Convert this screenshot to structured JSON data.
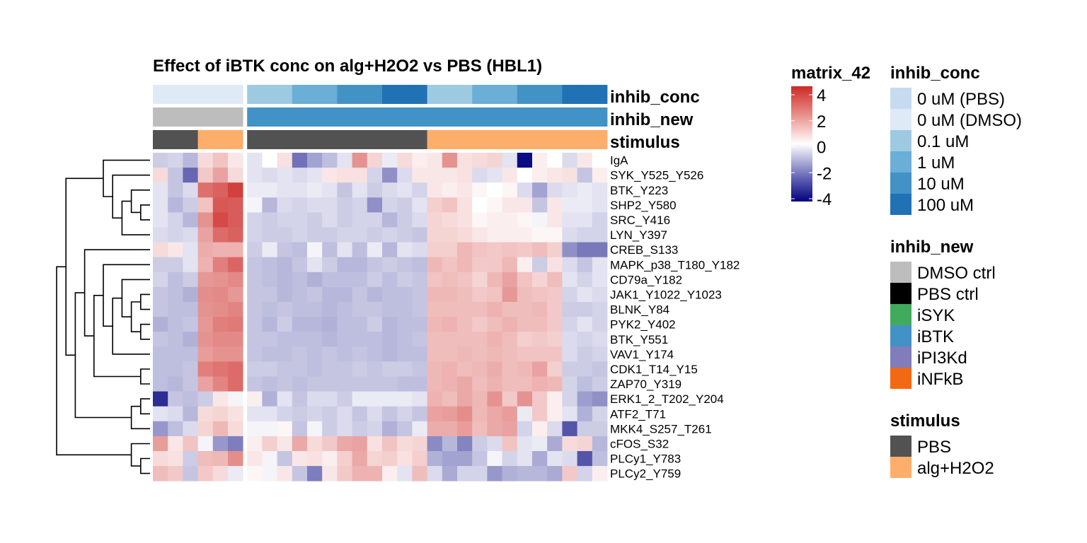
{
  "chart_data": {
    "type": "heatmap",
    "title": "Effect of iBTK conc on alg+H2O2 vs PBS (HBL1)",
    "rows": [
      "IgA",
      "SYK_Y525_Y526",
      "BTK_Y223",
      "SHP2_Y580",
      "SRC_Y416",
      "LYN_Y397",
      "CREB_S133",
      "MAPK_p38_T180_Y182",
      "CD79a_Y182",
      "JAK1_Y1022_Y1023",
      "BLNK_Y84",
      "PYK2_Y402",
      "BTK_Y551",
      "VAV1_Y174",
      "CDK1_T14_Y15",
      "ZAP70_Y319",
      "ERK1_2_T202_Y204",
      "ATF2_T71",
      "MKK4_S257_T261",
      "cFOS_S32",
      "PLCy1_Y783",
      "PLCy2_Y759"
    ],
    "column_split": [
      6,
      24
    ],
    "annotations": {
      "inhib_conc": {
        "label": "inhib_conc",
        "values": [
          "0 uM (DMSO)",
          "0 uM (DMSO)",
          "0 uM (DMSO)",
          "0 uM (DMSO)",
          "0 uM (DMSO)",
          "0 uM (DMSO)",
          "0.1 uM",
          "0.1 uM",
          "0.1 uM",
          "1 uM",
          "1 uM",
          "1 uM",
          "10 uM",
          "10 uM",
          "10 uM",
          "100 uM",
          "100 uM",
          "100 uM",
          "0.1 uM",
          "0.1 uM",
          "0.1 uM",
          "1 uM",
          "1 uM",
          "1 uM",
          "10 uM",
          "10 uM",
          "10 uM",
          "100 uM",
          "100 uM",
          "100 uM"
        ]
      },
      "inhib_new": {
        "label": "inhib_new",
        "values": [
          "DMSO ctrl",
          "DMSO ctrl",
          "DMSO ctrl",
          "DMSO ctrl",
          "DMSO ctrl",
          "DMSO ctrl",
          "iBTK",
          "iBTK",
          "iBTK",
          "iBTK",
          "iBTK",
          "iBTK",
          "iBTK",
          "iBTK",
          "iBTK",
          "iBTK",
          "iBTK",
          "iBTK",
          "iBTK",
          "iBTK",
          "iBTK",
          "iBTK",
          "iBTK",
          "iBTK",
          "iBTK",
          "iBTK",
          "iBTK",
          "iBTK",
          "iBTK",
          "iBTK"
        ]
      },
      "stimulus": {
        "label": "stimulus",
        "values": [
          "PBS",
          "PBS",
          "PBS",
          "alg+H2O2",
          "alg+H2O2",
          "alg+H2O2",
          "PBS",
          "PBS",
          "PBS",
          "PBS",
          "PBS",
          "PBS",
          "PBS",
          "PBS",
          "PBS",
          "PBS",
          "PBS",
          "PBS",
          "alg+H2O2",
          "alg+H2O2",
          "alg+H2O2",
          "alg+H2O2",
          "alg+H2O2",
          "alg+H2O2",
          "alg+H2O2",
          "alg+H2O2",
          "alg+H2O2",
          "alg+H2O2",
          "alg+H2O2",
          "alg+H2O2"
        ]
      }
    },
    "values": [
      [
        -0.6,
        -0.5,
        -0.9,
        0.5,
        0.9,
        0.3,
        -0.3,
        0,
        0.4,
        -2.0,
        -1.2,
        -0.8,
        -0.3,
        1.8,
        0.6,
        -0.2,
        0.5,
        0.2,
        0.3,
        1.8,
        0.4,
        0.5,
        0.6,
        -0.3,
        -3.8,
        0.2,
        0,
        -0.4,
        0.3,
        0
      ],
      [
        0.5,
        -0.7,
        -2.2,
        0.8,
        1.5,
        0.5,
        -0.3,
        -0.4,
        -0.3,
        -0.4,
        -0.3,
        0.3,
        0.4,
        0.4,
        -0.5,
        -1.5,
        -0.4,
        0.3,
        0.3,
        0.3,
        0.4,
        -0.4,
        -0.3,
        0.3,
        0,
        0.2,
        0.3,
        0.4,
        -0.7,
        0.2
      ],
      [
        -0.3,
        -0.7,
        -0.4,
        2.5,
        2.8,
        3.5,
        -0.2,
        -0.2,
        -0.3,
        -0.3,
        -0.2,
        -0.3,
        -0.7,
        -0.3,
        -0.6,
        -0.4,
        -0.3,
        -0.5,
        0.3,
        0.2,
        0.3,
        0.1,
        0,
        0.1,
        -0.4,
        -1.2,
        -0.4,
        -0.3,
        -0.2,
        -0.3
      ],
      [
        -0.3,
        -0.9,
        -0.6,
        0.9,
        3.0,
        2.9,
        -0.1,
        -0.9,
        -0.4,
        -0.5,
        -0.4,
        -0.4,
        -0.6,
        -0.5,
        -1.5,
        -0.5,
        -0.6,
        -0.3,
        0.7,
        0.9,
        0.4,
        0,
        0.1,
        0.3,
        0.3,
        -0.7,
        0.3,
        -0.2,
        -0.2,
        -0.3
      ],
      [
        -0.3,
        -0.5,
        -0.9,
        1.8,
        3.3,
        2.9,
        -0.5,
        -0.6,
        -0.5,
        -0.5,
        -0.6,
        -0.4,
        -0.6,
        -0.5,
        -0.5,
        -0.9,
        -0.6,
        -0.4,
        0.6,
        0.5,
        0.4,
        0.1,
        0.2,
        0.2,
        0.1,
        -0.1,
        0.3,
        -0.3,
        -0.3,
        -0.5
      ],
      [
        -0.4,
        -0.5,
        -0.4,
        1.5,
        2.6,
        2.8,
        -0.5,
        -0.6,
        -0.6,
        -0.5,
        -0.6,
        -0.6,
        -0.5,
        -0.5,
        -0.6,
        -0.5,
        -0.6,
        -0.7,
        0.6,
        0.6,
        0.5,
        0.3,
        0.2,
        0.2,
        0.2,
        0.1,
        0.1,
        -0.4,
        -0.5,
        -0.5
      ],
      [
        0.5,
        0.3,
        -0.3,
        1.3,
        1.2,
        1.2,
        -0.6,
        -0.2,
        -0.7,
        -0.8,
        -0.1,
        -0.8,
        -0.3,
        -0.8,
        -0.2,
        -0.9,
        -0.3,
        -0.4,
        0.7,
        0.7,
        1.1,
        0.9,
        0.8,
        0.9,
        0.8,
        1.0,
        0.7,
        -1.5,
        -1.9,
        -1.9
      ],
      [
        -0.6,
        -0.6,
        -0.3,
        1.2,
        2.2,
        2.7,
        -0.7,
        -0.8,
        -0.9,
        -0.7,
        -0.3,
        -0.6,
        -0.9,
        -0.9,
        -0.7,
        -0.6,
        -0.7,
        -0.8,
        1.1,
        0.9,
        1.1,
        0.8,
        0.8,
        1.1,
        0.2,
        -0.6,
        0.4,
        -0.4,
        -0.7,
        -0.3
      ],
      [
        -0.5,
        -0.8,
        -0.6,
        1.7,
        1.8,
        2.0,
        -0.7,
        -0.8,
        -0.9,
        -0.8,
        -1.0,
        -0.8,
        -0.8,
        -0.8,
        -0.6,
        -0.8,
        -0.6,
        -0.7,
        0.9,
        1.0,
        0.9,
        0.6,
        1.1,
        1.5,
        0.9,
        0.6,
        1.0,
        -0.3,
        -0.5,
        -0.3
      ],
      [
        -0.7,
        -0.8,
        -1.0,
        1.9,
        2.0,
        1.7,
        -0.7,
        -0.7,
        -0.9,
        -0.8,
        -0.7,
        -0.9,
        -0.9,
        -0.7,
        -0.9,
        -0.8,
        -0.8,
        -0.7,
        1.1,
        1.1,
        1.0,
        0.8,
        0.9,
        1.7,
        1.0,
        0.9,
        0.8,
        -0.5,
        -0.3,
        -0.4
      ],
      [
        -0.7,
        -0.8,
        -0.8,
        1.8,
        1.9,
        2.1,
        -0.7,
        -0.8,
        -0.7,
        -0.8,
        -0.8,
        -0.9,
        -0.8,
        -0.7,
        -0.7,
        -0.8,
        -0.8,
        -0.7,
        1.0,
        1.0,
        1.0,
        1.0,
        1.2,
        1.0,
        1.0,
        1.1,
        0.8,
        -0.6,
        -0.6,
        -0.5
      ],
      [
        -1.0,
        -0.8,
        -0.7,
        1.7,
        2.2,
        2.3,
        -0.7,
        -0.9,
        -0.6,
        -0.9,
        -0.9,
        -1.0,
        -0.8,
        -0.8,
        -0.6,
        -0.9,
        -0.8,
        -0.8,
        1.1,
        1.2,
        1.0,
        0.8,
        1.0,
        1.2,
        1.0,
        1.0,
        0.8,
        -0.5,
        -0.3,
        -0.5
      ],
      [
        -0.7,
        -0.8,
        -1.0,
        1.8,
        2.0,
        2.0,
        -0.7,
        -0.7,
        -0.8,
        -0.8,
        -0.8,
        -0.9,
        -0.8,
        -0.8,
        -0.8,
        -0.9,
        -0.8,
        -0.7,
        1.0,
        1.0,
        1.0,
        1.0,
        1.2,
        1.0,
        0.7,
        0.8,
        0.7,
        -0.4,
        -0.5,
        -0.4
      ],
      [
        -0.8,
        -0.8,
        -0.8,
        1.6,
        1.8,
        1.8,
        -0.7,
        -0.8,
        -0.8,
        -0.7,
        -0.8,
        -0.7,
        -0.8,
        -0.7,
        -0.8,
        -0.9,
        -0.8,
        -0.8,
        1.0,
        1.0,
        1.1,
        1.0,
        1.1,
        1.0,
        0.9,
        0.9,
        0.9,
        -0.4,
        -0.6,
        -0.5
      ],
      [
        -0.8,
        -0.8,
        -0.7,
        2.2,
        2.4,
        2.6,
        -0.6,
        -0.6,
        -0.7,
        -0.7,
        -0.8,
        -0.7,
        -0.7,
        -0.6,
        -0.7,
        -0.6,
        -0.6,
        -0.7,
        1.1,
        1.2,
        1.0,
        1.1,
        1.3,
        1.0,
        1.1,
        1.5,
        0.7,
        -0.6,
        -0.6,
        -0.7
      ],
      [
        -0.8,
        -0.9,
        -0.7,
        1.5,
        2.1,
        2.6,
        -0.7,
        -0.8,
        -0.7,
        -0.8,
        -0.7,
        -0.7,
        -0.7,
        -0.7,
        -0.7,
        -0.7,
        -0.8,
        -0.8,
        1.1,
        1.2,
        1.4,
        1.0,
        1.2,
        1.0,
        1.0,
        1.2,
        1.1,
        -0.5,
        -0.8,
        -0.6
      ],
      [
        -3.2,
        -0.7,
        -0.8,
        -0.6,
        0.3,
        -0.1,
        0.2,
        -1.0,
        -0.3,
        -0.7,
        -0.4,
        -0.4,
        -0.6,
        -0.2,
        -0.2,
        -0.2,
        -0.2,
        -0.3,
        1.2,
        1.0,
        1.4,
        1.1,
        1.8,
        0.8,
        1.8,
        0.8,
        0.2,
        -0.5,
        -1.3,
        -1.5
      ],
      [
        -0.3,
        -0.4,
        -0.9,
        0.5,
        0.6,
        0.4,
        -0.3,
        -0.3,
        -0.5,
        -0.6,
        -0.5,
        -0.6,
        -0.4,
        -0.7,
        -0.4,
        -0.7,
        -0.5,
        -0.7,
        1.5,
        1.6,
        1.9,
        1.1,
        1.4,
        1.6,
        -0.2,
        0.8,
        0.2,
        -0.3,
        -1.0,
        -0.5
      ],
      [
        -1.4,
        -0.8,
        -0.4,
        0.6,
        1.1,
        0.5,
        -0.1,
        -0.1,
        0.1,
        -0.7,
        -0.1,
        -0.6,
        -0.4,
        -0.6,
        -0.5,
        -1.0,
        -0.7,
        -0.2,
        1.3,
        1.3,
        1.6,
        1.0,
        1.4,
        1.5,
        -0.5,
        0.2,
        -0.4,
        -2.5,
        -0.6,
        -0.6
      ],
      [
        1.6,
        0.3,
        0.9,
        -0.1,
        -1.4,
        -1.8,
        0.2,
        0.7,
        0.3,
        1.4,
        0.5,
        0.8,
        1.4,
        1.5,
        0.4,
        0.9,
        0.5,
        0.6,
        -1.6,
        -0.9,
        -1.7,
        -0.6,
        -0.4,
        0.9,
        -0.3,
        -0.2,
        -1.1,
        0.5,
        0.6,
        -0.9
      ],
      [
        0.5,
        0.4,
        -0.6,
        1.0,
        1.1,
        1.9,
        0.3,
        -0.1,
        -0.7,
        0.3,
        0.4,
        0.2,
        0.7,
        1.4,
        0.6,
        0.7,
        0.4,
        0.7,
        -1.0,
        -1.2,
        -1.2,
        -0.7,
        -0.1,
        -0.5,
        -0.3,
        -1.1,
        -0.3,
        -0.4,
        -2.5,
        -0.8
      ],
      [
        1.0,
        0.8,
        -0.7,
        0.8,
        0.5,
        -0.2,
        0.1,
        -0.1,
        0.3,
        -0.7,
        -1.8,
        0.3,
        0.8,
        1.2,
        1.2,
        0.2,
        -0.3,
        1.0,
        -0.4,
        -1.1,
        -0.5,
        -0.5,
        -1.4,
        -1.0,
        -0.9,
        -0.9,
        -1.1,
        0.8,
        -0.5,
        0.2
      ]
    ],
    "color_scale": {
      "label": "matrix_42",
      "ticks": [
        4,
        2,
        0,
        -2,
        -4
      ],
      "domain": [
        -4,
        0,
        4
      ],
      "colors": [
        "#00007f",
        "#ffffff",
        "#cc2a26"
      ]
    },
    "dendrogram_merges": [
      [
        -4,
        -5
      ],
      [
        -3,
        1
      ],
      [
        -6,
        2
      ],
      [
        -2,
        3
      ],
      [
        -10,
        -11
      ],
      [
        -12,
        -13
      ],
      [
        5,
        6
      ],
      [
        -9,
        7
      ],
      [
        -14,
        8
      ],
      [
        -8,
        9
      ],
      [
        -15,
        -16
      ],
      [
        10,
        11
      ],
      [
        -7,
        12
      ],
      [
        -17,
        -18
      ],
      [
        -19,
        14
      ],
      [
        13,
        15
      ],
      [
        -1,
        4
      ],
      [
        17,
        16
      ],
      [
        -21,
        -22
      ],
      [
        -20,
        19
      ],
      [
        18,
        20
      ]
    ]
  },
  "legends": {
    "matrix_title": "matrix_42",
    "matrix_ticks": [
      "4",
      "2",
      "0",
      "-2",
      "-4"
    ],
    "inhib_conc": {
      "title": "inhib_conc",
      "items": [
        {
          "label": "0 uM (PBS)",
          "color": "#c6dbef"
        },
        {
          "label": "0 uM (DMSO)",
          "color": "#deebf7"
        },
        {
          "label": "0.1 uM",
          "color": "#9ecae1"
        },
        {
          "label": "1 uM",
          "color": "#6baed6"
        },
        {
          "label": "10 uM",
          "color": "#4292c6"
        },
        {
          "label": "100 uM",
          "color": "#2171b5"
        }
      ]
    },
    "inhib_new": {
      "title": "inhib_new",
      "items": [
        {
          "label": "DMSO ctrl",
          "color": "#bdbdbd"
        },
        {
          "label": "PBS ctrl",
          "color": "#000000"
        },
        {
          "label": "iSYK",
          "color": "#41ab5d"
        },
        {
          "label": "iBTK",
          "color": "#4292c6"
        },
        {
          "label": "iPI3Kd",
          "color": "#807dba"
        },
        {
          "label": "iNFkB",
          "color": "#f16913"
        }
      ]
    },
    "stimulus": {
      "title": "stimulus",
      "items": [
        {
          "label": "PBS",
          "color": "#525252"
        },
        {
          "label": "alg+H2O2",
          "color": "#fdae6b"
        }
      ]
    }
  }
}
